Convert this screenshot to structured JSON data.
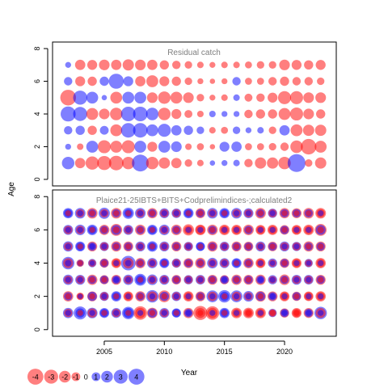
{
  "chart_data": {
    "type": "scatter",
    "xlabel": "Year",
    "ylabel": "Age",
    "xlim": [
      2000.7,
      2024.3
    ],
    "x_ticks": [
      2005,
      2010,
      2015,
      2020
    ],
    "y_ticks": [
      0,
      2,
      4,
      6,
      8
    ],
    "ylim": [
      -0.4,
      8.4
    ],
    "colors": {
      "negative": "#ff0000",
      "positive": "#0000ff",
      "frame": "#000000",
      "title": "#7f7f7f"
    },
    "legend": {
      "placement": "bottom-left",
      "values": [
        -4,
        -3,
        -2,
        -1,
        0,
        1,
        2,
        3,
        4
      ]
    },
    "panels": [
      {
        "title": "Residual catch",
        "years": [
          2002,
          2003,
          2004,
          2005,
          2006,
          2007,
          2008,
          2009,
          2010,
          2011,
          2012,
          2013,
          2014,
          2015,
          2016,
          2017,
          2018,
          2019,
          2020,
          2021,
          2022,
          2023
        ],
        "ages": [
          1,
          2,
          3,
          4,
          5,
          6,
          7
        ],
        "residuals": [
          [
            2.2,
            -1.5,
            -2.5,
            -2.8,
            -3.0,
            -2.2,
            4.0,
            -2.2,
            -1.8,
            -1.5,
            -0.8,
            -0.6,
            0.4,
            0.5,
            0.6,
            -1.0,
            -1.8,
            -1.8,
            -2.2,
            4.5,
            -0.8,
            -1.8
          ],
          [
            0.5,
            -0.6,
            2.0,
            -2.4,
            -2.0,
            -2.4,
            2.0,
            -1.4,
            2.0,
            1.6,
            -0.6,
            -0.7,
            -0.4,
            1.4,
            1.5,
            -0.7,
            -0.7,
            -0.8,
            -1.0,
            -2.2,
            -3.4,
            -2.0
          ],
          [
            1.0,
            1.2,
            -1.2,
            1.1,
            -2.0,
            3.0,
            3.0,
            2.0,
            2.4,
            1.5,
            1.2,
            0.8,
            -0.6,
            -0.7,
            0.8,
            0.5,
            0.6,
            -0.8,
            1.5,
            -2.0,
            -1.8,
            -1.8
          ],
          [
            3.2,
            2.8,
            -2.0,
            -1.6,
            -2.2,
            3.0,
            3.0,
            2.2,
            -2.2,
            -1.4,
            -0.9,
            -0.6,
            0.6,
            0.5,
            0.5,
            -1.0,
            -1.2,
            -1.2,
            -2.0,
            -2.4,
            -1.6,
            -1.2
          ],
          [
            -3.5,
            2.8,
            2.0,
            0.4,
            -2.0,
            2.0,
            2.0,
            -1.6,
            -2.2,
            -2.0,
            -1.6,
            -0.8,
            -0.5,
            -0.6,
            0.6,
            -0.9,
            -1.0,
            -1.4,
            -2.4,
            -2.4,
            -1.6,
            -1.6
          ],
          [
            1.0,
            -1.4,
            -1.2,
            1.2,
            3.2,
            1.4,
            -1.5,
            -2.0,
            -1.4,
            -1.2,
            -0.8,
            -0.5,
            -0.4,
            -0.5,
            1.0,
            -0.7,
            -0.7,
            -1.0,
            -1.2,
            -1.0,
            -1.0,
            -0.8
          ],
          [
            0.5,
            -1.5,
            -1.4,
            -1.6,
            -1.5,
            -1.8,
            -1.6,
            -1.5,
            -1.2,
            -1.0,
            -0.8,
            -0.6,
            -0.5,
            -0.6,
            -0.6,
            -0.7,
            -0.8,
            -0.8,
            -1.6,
            -1.4,
            -1.2,
            -1.4
          ]
        ]
      },
      {
        "title": "Plaice21-25IBTS+BITS+Codprelimindices-;calculated2",
        "years": [
          2002,
          2003,
          2004,
          2005,
          2006,
          2007,
          2008,
          2009,
          2010,
          2011,
          2012,
          2013,
          2014,
          2015,
          2016,
          2017,
          2018,
          2019,
          2020,
          2021,
          2022,
          2023
        ],
        "ages": [
          1,
          2,
          3,
          4,
          5,
          6,
          7
        ],
        "layers": [
          {
            "residuals": [
              [
                1.5,
                2.4,
                1.6,
                1.4,
                1.4,
                2.2,
                -2.6,
                -1.6,
                1.4,
                1.2,
                -1.5,
                -2.8,
                -2.6,
                1.5,
                -1.6,
                -1.6,
                -1.6,
                1.0,
                -1.2,
                -1.4,
                -1.4,
                2.2
              ],
              [
                -1.5,
                -0.8,
                -1.4,
                1.2,
                1.5,
                -1.4,
                -1.5,
                2.2,
                -2.0,
                1.3,
                -1.5,
                -1.4,
                2.0,
                2.2,
                2.0,
                1.6,
                -1.6,
                -1.4,
                -1.4,
                -1.2,
                -1.3,
                -1.5
              ],
              [
                1.5,
                1.4,
                -1.5,
                -1.2,
                -1.4,
                1.5,
                2.0,
                1.6,
                1.4,
                -1.3,
                1.2,
                1.3,
                -1.4,
                -1.2,
                -1.5,
                -1.4,
                -1.5,
                1.2,
                -1.6,
                1.4,
                1.3,
                -1.4
              ],
              [
                2.2,
                -0.8,
                1.0,
                -1.2,
                -1.4,
                3.0,
                -1.5,
                1.5,
                1.4,
                1.2,
                -1.4,
                -1.6,
                1.6,
                1.4,
                1.4,
                -1.5,
                -1.4,
                1.2,
                -1.3,
                -1.4,
                1.0,
                -1.5
              ],
              [
                1.5,
                1.4,
                -1.4,
                1.2,
                -1.5,
                -1.4,
                1.4,
                1.6,
                1.4,
                -1.4,
                1.2,
                1.2,
                -1.5,
                1.3,
                -1.4,
                -1.3,
                1.4,
                -1.3,
                1.4,
                1.2,
                -1.5,
                -1.4
              ],
              [
                1.4,
                1.6,
                1.6,
                -1.5,
                -2.0,
                1.4,
                -1.6,
                1.5,
                1.6,
                -1.6,
                -1.8,
                -1.6,
                -1.6,
                -1.6,
                -1.5,
                -1.6,
                -1.4,
                -1.5,
                -1.3,
                -1.4,
                -1.6,
                -2.0
              ],
              [
                1.5,
                1.6,
                -1.6,
                1.8,
                -1.6,
                1.8,
                1.6,
                -1.5,
                1.4,
                1.3,
                1.5,
                -1.4,
                1.6,
                1.5,
                1.6,
                1.4,
                -1.6,
                1.2,
                -1.5,
                -1.4,
                -1.6,
                -1.6
              ]
            ]
          },
          {
            "residuals": [
              [
                -1.0,
                1.2,
                -1.2,
                1.0,
                -1.0,
                1.4,
                -1.5,
                1.2,
                -1.0,
                1.0,
                1.0,
                -1.4,
                -1.5,
                1.0,
                -1.0,
                -1.0,
                -1.0,
                -0.8,
                1.0,
                -1.0,
                1.0,
                -1.4
              ],
              [
                1.0,
                -0.6,
                1.2,
                -1.0,
                1.0,
                -1.0,
                1.0,
                -1.4,
                1.2,
                -1.0,
                -1.0,
                1.0,
                -1.2,
                1.2,
                -1.2,
                -1.0,
                1.2,
                1.0,
                -1.0,
                1.0,
                -1.0,
                -1.0
              ],
              [
                -1.0,
                -1.0,
                1.0,
                1.0,
                1.0,
                -1.0,
                1.2,
                -1.0,
                -1.0,
                1.0,
                -1.0,
                -1.0,
                1.0,
                1.0,
                1.0,
                1.0,
                1.0,
                -0.8,
                1.0,
                -1.0,
                -1.0,
                1.0
              ],
              [
                -1.4,
                0.6,
                -0.8,
                1.0,
                -1.0,
                -1.6,
                1.0,
                -1.0,
                1.0,
                -1.0,
                1.0,
                1.0,
                -1.0,
                -1.0,
                1.0,
                1.0,
                -1.0,
                -0.8,
                1.0,
                -1.0,
                -0.8,
                -1.0
              ],
              [
                -1.0,
                1.0,
                1.0,
                -1.0,
                1.0,
                1.0,
                -1.0,
                1.0,
                -1.0,
                1.0,
                -1.0,
                1.0,
                1.0,
                -1.0,
                1.0,
                1.0,
                -1.0,
                1.0,
                -1.0,
                -1.0,
                1.0,
                1.0
              ],
              [
                -1.0,
                -1.0,
                1.0,
                1.0,
                1.4,
                -1.0,
                1.0,
                1.0,
                -1.0,
                1.0,
                -1.0,
                -1.2,
                1.0,
                -1.0,
                -1.0,
                1.0,
                -1.0,
                -1.0,
                1.0,
                -1.0,
                -1.0,
                1.4
              ],
              [
                1.0,
                -1.0,
                1.0,
                -1.0,
                1.0,
                1.0,
                -1.0,
                1.0,
                -1.0,
                -1.0,
                1.0,
                1.0,
                -1.0,
                1.0,
                -1.0,
                -1.0,
                1.0,
                -1.0,
                1.0,
                1.0,
                1.0,
                -1.0
              ]
            ]
          },
          {
            "residuals": [
              [
                0.5,
                -0.5,
                0.5,
                -0.5,
                0.5,
                -0.5,
                0.5,
                -0.5,
                0.5,
                -0.5,
                0.5,
                -0.5,
                0.5,
                -0.5,
                0.5,
                -0.5,
                0.5,
                -0.5,
                0.5,
                -0.5,
                0.5,
                0.5
              ],
              [
                -0.5,
                0.4,
                -0.5,
                0.5,
                -0.5,
                0.5,
                -0.5,
                0.5,
                -0.5,
                0.5,
                0.5,
                -0.5,
                0.5,
                -0.5,
                0.5,
                0.5,
                -0.5,
                0.5,
                0.5,
                -0.5,
                0.5,
                0.5
              ],
              [
                0.5,
                0.5,
                -0.5,
                -0.5,
                0.5,
                0.5,
                -0.5,
                0.5,
                0.5,
                -0.5,
                0.5,
                0.5,
                -0.5,
                0.5,
                -0.5,
                -0.5,
                0.5,
                0.5,
                -0.5,
                0.5,
                0.5,
                -0.5
              ],
              [
                0.6,
                -0.4,
                0.4,
                -0.5,
                0.5,
                0.6,
                -0.5,
                0.5,
                -0.5,
                0.5,
                -0.5,
                -0.5,
                0.5,
                0.5,
                -0.5,
                -0.5,
                0.5,
                0.4,
                -0.5,
                0.5,
                0.4,
                0.5
              ],
              [
                0.5,
                -0.5,
                0.5,
                0.5,
                -0.5,
                -0.5,
                0.5,
                -0.5,
                0.5,
                -0.5,
                0.5,
                -0.5,
                -0.5,
                0.5,
                -0.5,
                -0.5,
                0.5,
                -0.5,
                0.5,
                0.5,
                -0.5,
                -0.5
              ],
              [
                0.5,
                0.5,
                -0.5,
                -0.5,
                -0.6,
                0.5,
                -0.5,
                -0.5,
                0.5,
                -0.5,
                0.5,
                0.5,
                -0.5,
                0.5,
                0.5,
                -0.5,
                0.5,
                0.5,
                -0.5,
                0.5,
                0.5,
                -0.6
              ],
              [
                -0.5,
                0.5,
                -0.5,
                0.5,
                -0.5,
                -0.5,
                0.5,
                -0.5,
                0.5,
                0.5,
                -0.5,
                -0.5,
                0.5,
                -0.5,
                0.5,
                0.5,
                -0.5,
                0.5,
                -0.5,
                -0.5,
                -0.5,
                0.5
              ]
            ]
          }
        ]
      }
    ]
  }
}
